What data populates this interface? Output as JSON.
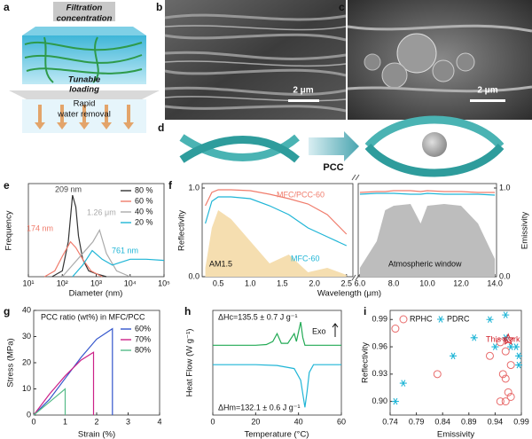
{
  "panel_labels": [
    "a",
    "b",
    "c",
    "d",
    "e",
    "f",
    "g",
    "h",
    "i"
  ],
  "panel_a": {
    "filtration": [
      "Filtration",
      "concentration"
    ],
    "loading": [
      "Tunable",
      "loading"
    ],
    "removal": [
      "Rapid",
      "water removal"
    ]
  },
  "panel_b": {
    "scale_bar": "2 μm"
  },
  "panel_c": {
    "scale_bar": "2 μm"
  },
  "panel_d": {
    "arrow_label": "PCC"
  },
  "chart_data": [
    {
      "type": "line",
      "xlabel": "Diameter (nm)",
      "ylabel": "Frequency",
      "xscale": "log",
      "xlim": [
        10,
        100000
      ],
      "ylim": [
        0,
        0.16
      ],
      "xticks": [
        {
          "value": 10,
          "label": "10¹"
        },
        {
          "value": 100,
          "label": "10²"
        },
        {
          "value": 1000,
          "label": "10³"
        },
        {
          "value": 10000,
          "label": "10⁴"
        },
        {
          "value": 100000,
          "label": "10⁵"
        }
      ],
      "series": [
        {
          "name": "80 %",
          "color": "#333333",
          "x": [
            50,
            100,
            150,
            200,
            250,
            300,
            400,
            600,
            1000,
            2000
          ],
          "values": [
            0,
            0.01,
            0.06,
            0.14,
            0.12,
            0.07,
            0.03,
            0.01,
            0.005,
            0
          ]
        },
        {
          "name": "60 %",
          "color": "#f07c6c",
          "x": [
            30,
            60,
            100,
            174,
            250,
            400,
            700,
            1500
          ],
          "values": [
            0,
            0.01,
            0.035,
            0.06,
            0.05,
            0.03,
            0.01,
            0
          ]
        },
        {
          "name": "40 %",
          "color": "#aaaaaa",
          "x": [
            100,
            200,
            400,
            800,
            1260,
            2000,
            4000,
            10000
          ],
          "values": [
            0,
            0.02,
            0.04,
            0.06,
            0.08,
            0.04,
            0.01,
            0
          ]
        },
        {
          "name": "20 %",
          "color": "#1fb5d6",
          "x": [
            200,
            400,
            761,
            1500,
            3000,
            10000,
            30000,
            100000
          ],
          "values": [
            0,
            0.02,
            0.045,
            0.03,
            0.02,
            0.03,
            0.03,
            0.028
          ]
        }
      ],
      "annotations": [
        {
          "text": "209 nm",
          "color": "#444444"
        },
        {
          "text": "174 nm",
          "color": "#f07c6c"
        },
        {
          "text": "1.26 μm",
          "color": "#aaaaaa"
        },
        {
          "text": "761 nm",
          "color": "#1fb5d6"
        }
      ]
    },
    {
      "type": "line",
      "ylabel": "Reflectivity",
      "xlim": [
        0.25,
        2.6
      ],
      "ylim": [
        0,
        1.05
      ],
      "xticks": [
        0.5,
        {
          "value": 1,
          "label": "1.0"
        },
        1.5,
        {
          "value": 2,
          "label": "2.0"
        },
        2.5
      ],
      "yticks": [
        {
          "value": 0,
          "label": "0.0"
        },
        {
          "value": 1,
          "label": "1.0"
        }
      ],
      "x": [
        0.3,
        0.4,
        0.5,
        0.7,
        1.0,
        1.3,
        1.6,
        1.9,
        2.2,
        2.5
      ],
      "series": [
        {
          "name": "AM1.5",
          "color": "#f5deb0",
          "style": "area",
          "values": [
            0.1,
            0.55,
            0.75,
            0.65,
            0.4,
            0.15,
            0.25,
            0.05,
            0.1,
            0.02
          ]
        },
        {
          "name": "MFC/PCC-60",
          "color": "#f07c6c",
          "values": [
            0.8,
            0.95,
            0.98,
            0.98,
            0.97,
            0.93,
            0.88,
            0.82,
            0.7,
            0.48
          ]
        },
        {
          "name": "MFC-60",
          "color": "#1fb5d6",
          "values": [
            0.6,
            0.85,
            0.9,
            0.9,
            0.88,
            0.8,
            0.7,
            0.55,
            0.45,
            0.35
          ]
        }
      ]
    },
    {
      "type": "line",
      "xlabel": "Wavelength (μm)",
      "ylabel": "Emissivity",
      "xlim": [
        5.9,
        14.1
      ],
      "ylim": [
        0,
        1.05
      ],
      "xticks": [
        {
          "value": 6,
          "label": "6.0"
        },
        {
          "value": 8,
          "label": "8.0"
        },
        {
          "value": 10,
          "label": "10.0"
        },
        {
          "value": 12,
          "label": "12.0"
        },
        {
          "value": 14,
          "label": "14.0"
        }
      ],
      "yticks": [
        {
          "value": 0,
          "label": "0.0"
        },
        {
          "value": 1,
          "label": "1.0"
        }
      ],
      "x": [
        6,
        7,
        7.5,
        8,
        9,
        9.6,
        10,
        11,
        12,
        13,
        14
      ],
      "series": [
        {
          "name": "Atmospheric window",
          "color": "#bdbdbd",
          "style": "area",
          "values": [
            0.1,
            0.4,
            0.75,
            0.8,
            0.82,
            0.6,
            0.8,
            0.82,
            0.8,
            0.6,
            0.2
          ]
        },
        {
          "color": "#f07c6c",
          "values": [
            0.95,
            0.96,
            0.96,
            0.97,
            0.97,
            0.96,
            0.97,
            0.96,
            0.96,
            0.95,
            0.95
          ]
        },
        {
          "color": "#1fb5d6",
          "values": [
            0.93,
            0.94,
            0.94,
            0.94,
            0.93,
            0.93,
            0.94,
            0.93,
            0.93,
            0.93,
            0.92
          ]
        }
      ]
    },
    {
      "type": "line",
      "xlabel": "Strain (%)",
      "ylabel": "Stress (MPa)",
      "legend_title": "PCC ratio (wt%) in MFC/PCC",
      "xlim": [
        0,
        4
      ],
      "ylim": [
        0,
        40
      ],
      "xticks": [
        0,
        1,
        2,
        3,
        4
      ],
      "yticks": [
        0,
        10,
        20,
        30,
        40
      ],
      "series": [
        {
          "name": "60%",
          "color": "#3355cc",
          "x": [
            0,
            0.5,
            1,
            1.5,
            2,
            2.5,
            2.5
          ],
          "values": [
            0,
            6,
            14,
            22,
            29,
            33,
            0
          ]
        },
        {
          "name": "70%",
          "color": "#cc2288",
          "x": [
            0,
            0.5,
            1,
            1.5,
            1.9,
            1.9
          ],
          "values": [
            0,
            8,
            15,
            21,
            24,
            0
          ]
        },
        {
          "name": "80%",
          "color": "#55bb88",
          "x": [
            0,
            0.5,
            1,
            1
          ],
          "values": [
            0,
            5,
            10,
            0
          ]
        }
      ]
    },
    {
      "type": "line",
      "xlabel": "Temperature (°C)",
      "ylabel": "Heat Flow (W g⁻¹)",
      "xlim": [
        0,
        60
      ],
      "ylim": [
        -1.5,
        1.2
      ],
      "xticks": [
        0,
        20,
        40,
        60
      ],
      "series": [
        {
          "color": "#22aa55",
          "x": [
            0,
            10,
            20,
            25,
            28,
            30,
            32,
            35,
            38,
            39,
            41,
            42,
            43,
            45,
            60
          ],
          "values": [
            0.3,
            0.3,
            0.3,
            0.32,
            0.4,
            0.6,
            0.35,
            0.35,
            0.6,
            0.4,
            0.9,
            0.5,
            0.3,
            0.3,
            0.3
          ]
        },
        {
          "color": "#1fb5d6",
          "x": [
            0,
            20,
            30,
            38,
            41,
            43,
            44,
            45,
            47,
            60
          ],
          "values": [
            -0.2,
            -0.2,
            -0.22,
            -0.3,
            -0.6,
            -1.3,
            -0.9,
            -0.4,
            -0.2,
            -0.2
          ]
        }
      ],
      "annotations": [
        {
          "text": "ΔHc=135.5 ± 0.7 J g⁻¹",
          "color": "#111111"
        },
        {
          "text": "ΔHm=132.1 ± 0.6 J g⁻¹",
          "color": "#111111"
        },
        {
          "text": "Exo",
          "color": "#111111"
        }
      ]
    },
    {
      "type": "scatter",
      "xlabel": "Emissivity",
      "ylabel": "Reflectivity",
      "xlim": [
        0.74,
        0.99
      ],
      "ylim": [
        0.885,
        1.0
      ],
      "xticks": [
        0.74,
        0.79,
        0.84,
        0.89,
        0.94,
        0.99
      ],
      "yticks": [
        {
          "value": 0.9,
          "label": "0.90"
        },
        0.93,
        0.96,
        0.99
      ],
      "series": [
        {
          "name": "RPHC",
          "color": "#e86b6b",
          "marker": "circle",
          "x": [
            0.75,
            0.83,
            0.93,
            0.95,
            0.96,
            0.955,
            0.96,
            0.965,
            0.97,
            0.95,
            0.96,
            0.97
          ],
          "values": [
            0.98,
            0.93,
            0.95,
            0.965,
            0.955,
            0.93,
            0.925,
            0.91,
            0.905,
            0.9,
            0.9,
            0.94
          ]
        },
        {
          "name": "PDRC",
          "color": "#1fb5d6",
          "marker": "asterisk",
          "x": [
            0.75,
            0.765,
            0.86,
            0.9,
            0.93,
            0.94,
            0.96,
            0.96,
            0.97,
            0.98,
            0.985,
            0.985
          ],
          "values": [
            0.9,
            0.92,
            0.95,
            0.97,
            0.99,
            0.96,
            0.995,
            0.97,
            0.96,
            0.96,
            0.94,
            0.95
          ]
        },
        {
          "name": "This work",
          "color": "#d0202a",
          "marker": "star",
          "x": [
            0.965
          ],
          "values": [
            0.968
          ]
        }
      ]
    }
  ]
}
